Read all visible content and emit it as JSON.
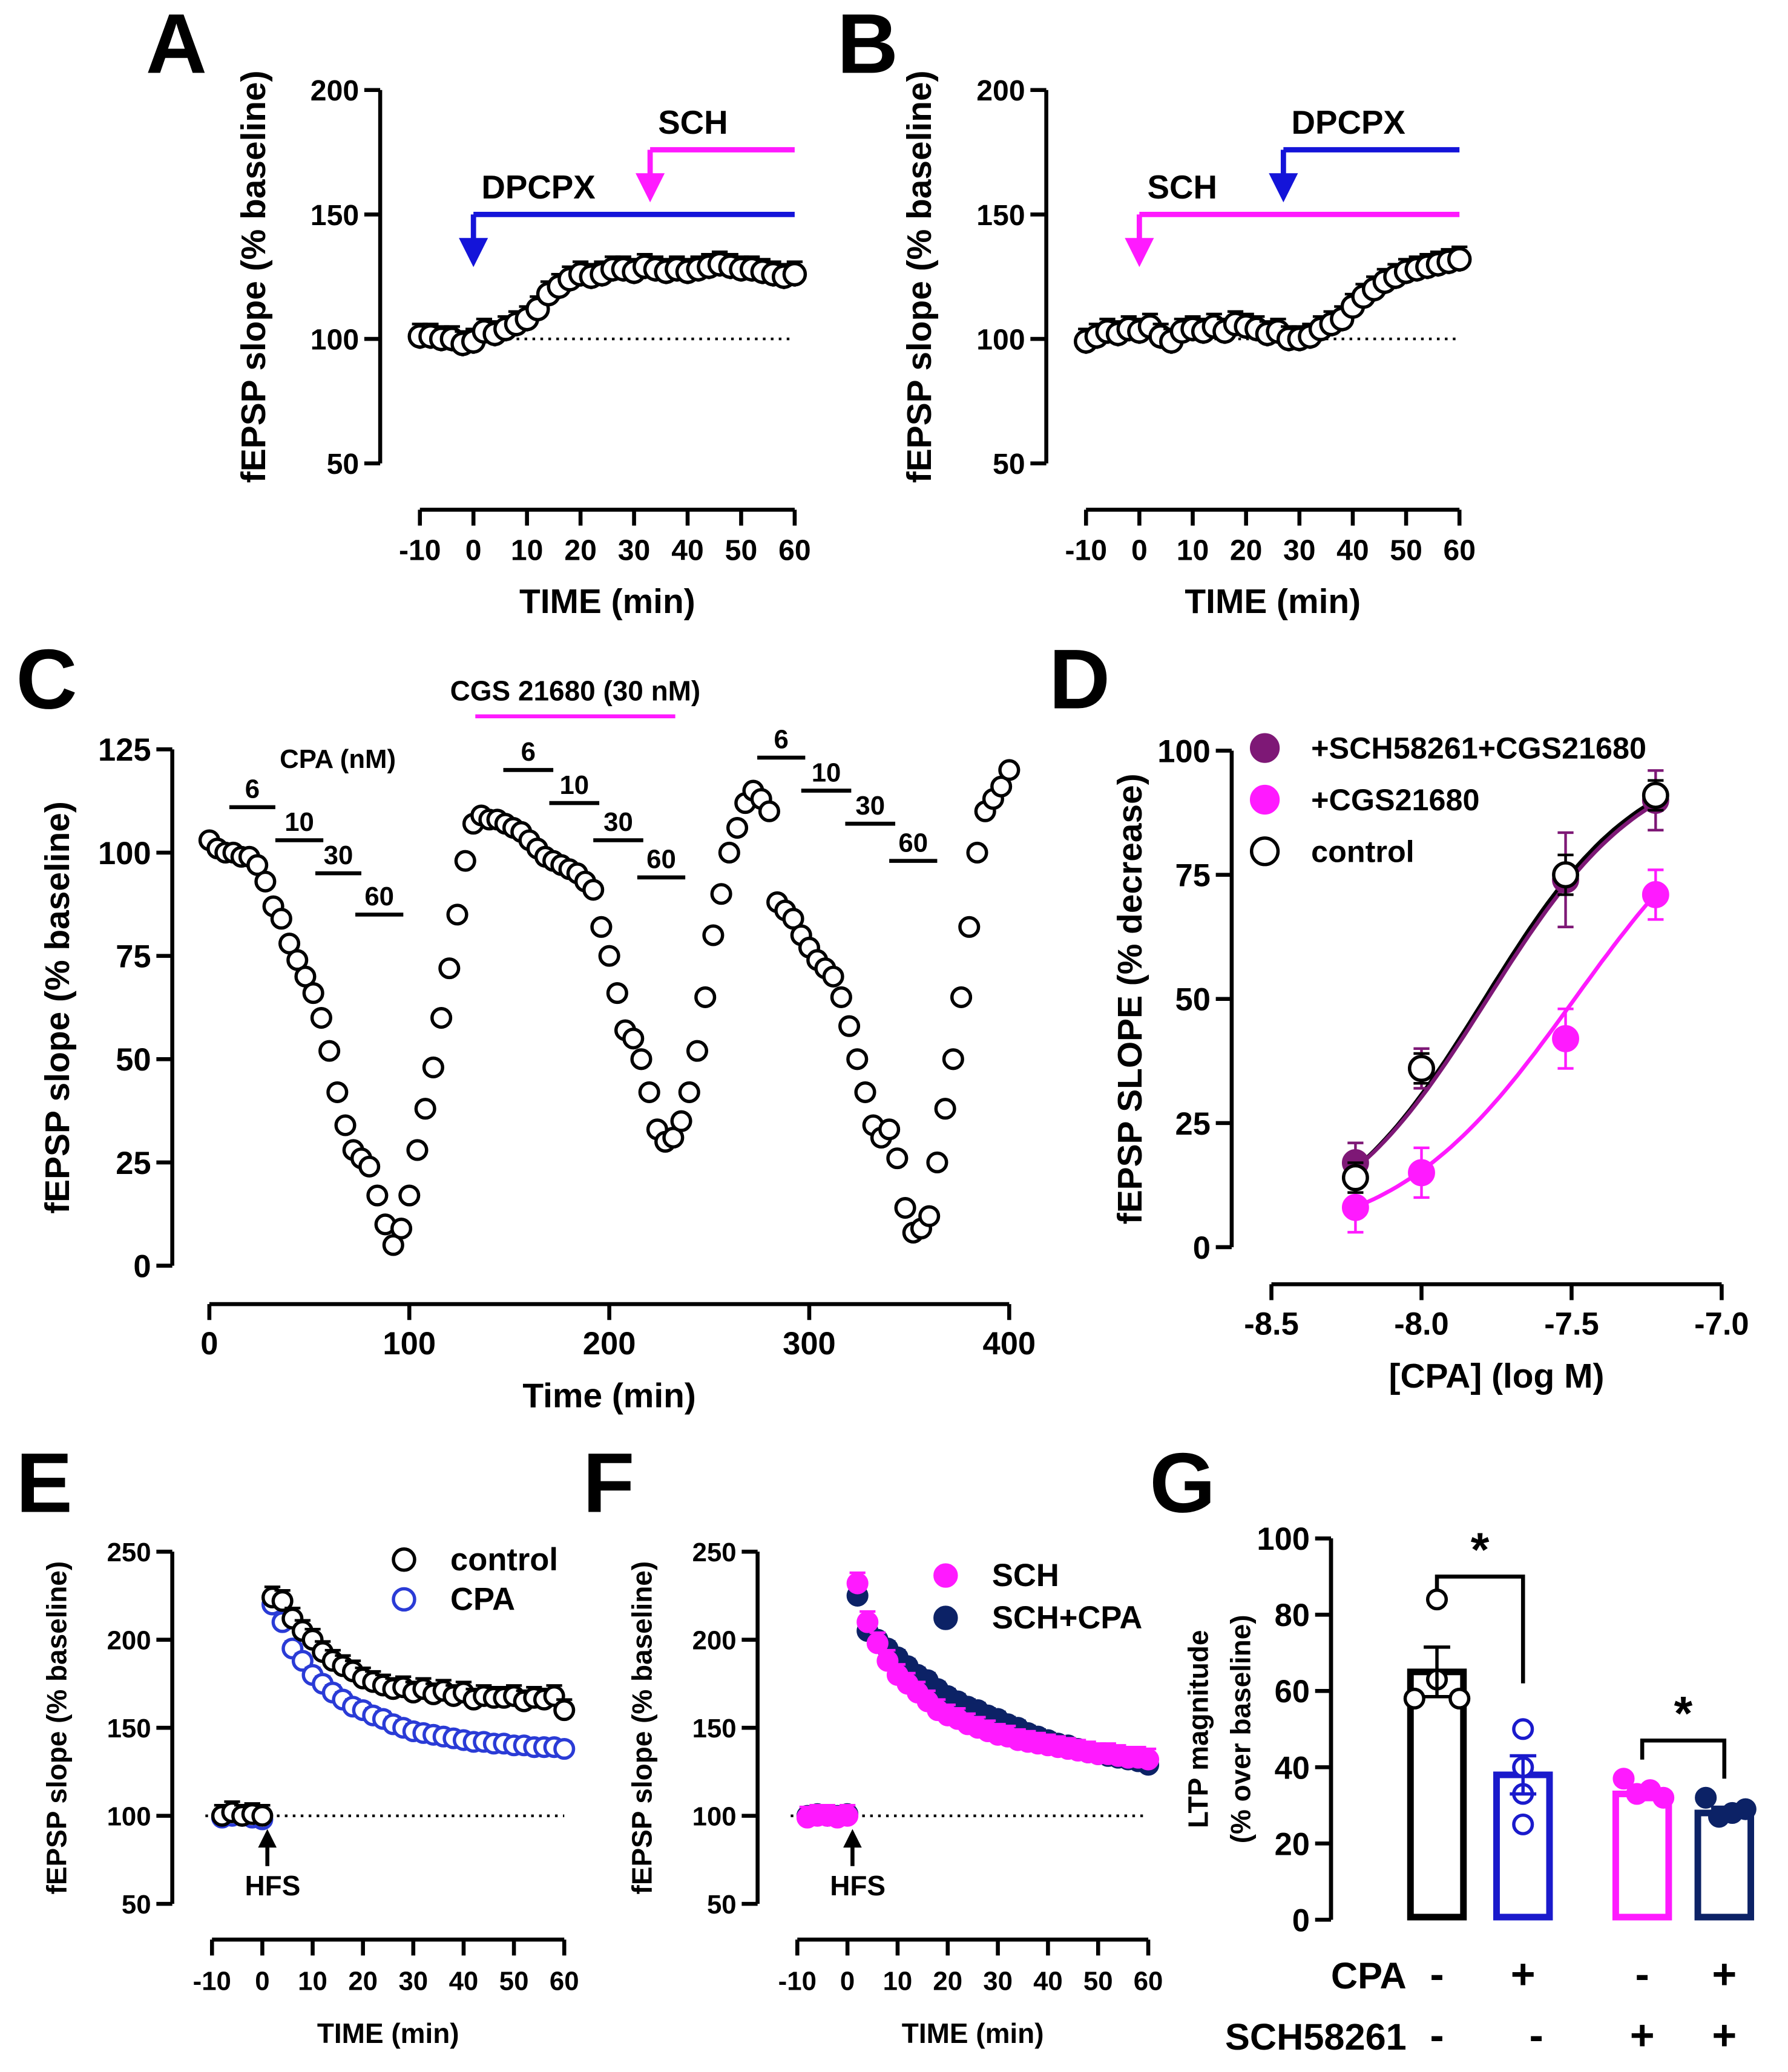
{
  "chart_data": [
    {
      "id": "A",
      "type": "scatter",
      "panel_label": "A",
      "xlabel": "TIME (min)",
      "ylabel": [
        "fEPSP slope (% baseline)"
      ],
      "xlim": [
        -10,
        60
      ],
      "ylim": [
        50,
        200
      ],
      "xticks": [
        "-10",
        "0",
        "10",
        "20",
        "30",
        "40",
        "50",
        "60"
      ],
      "yticks": [
        "50",
        "100",
        "150",
        "200"
      ],
      "baseline": 100,
      "series": [
        {
          "name": "fEPSP",
          "marker": "open",
          "color": "#000000",
          "x_start": -10,
          "x_step": 2,
          "err": 5,
          "y": [
            101,
            101,
            100,
            100,
            98,
            99,
            103,
            102,
            104,
            106,
            108,
            112,
            118,
            121,
            124,
            126,
            125,
            126,
            128,
            128,
            127,
            129,
            128,
            127,
            128,
            127,
            128,
            129,
            130,
            129,
            128,
            128,
            127,
            126,
            125,
            126
          ]
        }
      ],
      "drug_arrows": [
        {
          "label": "DPCPX",
          "x": 0,
          "level": 150,
          "tip": 131,
          "color": "#1414d9"
        },
        {
          "label": "SCH",
          "x": 33,
          "level": 176,
          "tip": 157,
          "color": "#ff1aff"
        }
      ]
    },
    {
      "id": "B",
      "type": "scatter",
      "panel_label": "B",
      "xlabel": "TIME (min)",
      "ylabel": [
        "fEPSP slope (% baseline)"
      ],
      "xlim": [
        -10,
        60
      ],
      "ylim": [
        50,
        200
      ],
      "xticks": [
        "-10",
        "0",
        "10",
        "20",
        "30",
        "40",
        "50",
        "60"
      ],
      "yticks": [
        "50",
        "100",
        "150",
        "200"
      ],
      "baseline": 100,
      "series": [
        {
          "name": "fEPSP",
          "marker": "open",
          "color": "#000000",
          "x_start": -10,
          "x_step": 2,
          "err": 5,
          "y": [
            99,
            101,
            103,
            102,
            104,
            103,
            105,
            101,
            99,
            103,
            104,
            103,
            105,
            103,
            106,
            105,
            104,
            102,
            103,
            100,
            100,
            101,
            104,
            106,
            108,
            113,
            117,
            120,
            123,
            125,
            127,
            128,
            129,
            130,
            131,
            132
          ]
        }
      ],
      "drug_arrows": [
        {
          "label": "SCH",
          "x": 0,
          "level": 150,
          "tip": 131,
          "color": "#ff1aff"
        },
        {
          "label": "DPCPX",
          "x": 27,
          "level": 176,
          "tip": 157,
          "color": "#1414d9"
        }
      ]
    },
    {
      "id": "C",
      "type": "scatter",
      "panel_label": "C",
      "xlabel": "Time (min)",
      "ylabel": [
        "fEPSP slope (% baseline)"
      ],
      "xlim": [
        0,
        400
      ],
      "ylim": [
        0,
        125
      ],
      "xticks": [
        "0",
        "100",
        "200",
        "300",
        "400"
      ],
      "yticks": [
        "0",
        "25",
        "50",
        "75",
        "100",
        "125"
      ],
      "series": [
        {
          "name": "fEPSP",
          "marker": "open",
          "color": "#000000",
          "x_start": 0,
          "x_step": 4,
          "y": [
            103,
            101,
            100,
            100,
            99,
            99,
            97,
            93,
            87,
            84,
            78,
            74,
            70,
            66,
            60,
            52,
            42,
            34,
            28,
            26,
            24,
            17,
            10,
            5,
            9,
            17,
            28,
            38,
            48,
            60,
            72,
            85,
            98,
            107,
            109,
            108,
            108,
            107,
            106,
            105,
            103,
            101,
            99,
            98,
            97,
            96,
            95,
            93,
            91,
            82,
            75,
            66,
            57,
            55,
            50,
            42,
            33,
            30,
            31,
            35,
            42,
            52,
            65,
            80,
            90,
            100,
            106,
            112,
            115,
            113,
            110,
            88,
            86,
            84,
            80,
            77,
            74,
            72,
            70,
            65,
            58,
            50,
            42,
            34,
            31,
            33,
            26,
            14,
            8,
            9,
            12,
            25,
            38,
            50,
            65,
            82,
            100,
            110,
            113,
            116,
            120
          ]
        }
      ],
      "cpa_label": "CPA (nM)",
      "cpa_color": "#1414c8",
      "cpa_bars": [
        {
          "label": "6",
          "x": [
            10,
            33
          ],
          "level": 111
        },
        {
          "label": "10",
          "x": [
            33,
            57
          ],
          "level": 103
        },
        {
          "label": "30",
          "x": [
            53,
            76
          ],
          "level": 95
        },
        {
          "label": "60",
          "x": [
            73,
            97
          ],
          "level": 85
        },
        {
          "label": "6",
          "x": [
            147,
            172
          ],
          "level": 120
        },
        {
          "label": "10",
          "x": [
            170,
            195
          ],
          "level": 112
        },
        {
          "label": "30",
          "x": [
            192,
            217
          ],
          "level": 103
        },
        {
          "label": "60",
          "x": [
            214,
            238
          ],
          "level": 94
        },
        {
          "label": "6",
          "x": [
            274,
            298
          ],
          "level": 123
        },
        {
          "label": "10",
          "x": [
            296,
            321
          ],
          "level": 115
        },
        {
          "label": "30",
          "x": [
            318,
            343
          ],
          "level": 107
        },
        {
          "label": "60",
          "x": [
            340,
            364
          ],
          "level": 98
        }
      ],
      "cgs_bar": {
        "label": "CGS 21680 (30 nM)",
        "x": [
          133,
          233
        ],
        "level": 133,
        "color": "#ff1aff"
      }
    },
    {
      "id": "D",
      "type": "scatter",
      "panel_label": "D",
      "xlabel": "[CPA] (log M)",
      "ylabel": [
        "fEPSP SLOPE  (% decrease)"
      ],
      "xlim": [
        -8.5,
        -7.0
      ],
      "ylim": [
        0,
        100
      ],
      "xticks": [
        "-8.5",
        "-8.0",
        "-7.5",
        "-7.0"
      ],
      "yticks": [
        "0",
        "25",
        "50",
        "75",
        "100"
      ],
      "legend_position": "top-left",
      "series": [
        {
          "name": "control",
          "marker": "open",
          "color": "#000000",
          "x": [
            -8.22,
            -8.0,
            -7.52,
            -7.22
          ],
          "y": [
            14,
            36,
            75,
            91
          ],
          "err": [
            3,
            3,
            4,
            3
          ],
          "fit": {
            "logEC50": -7.79,
            "hill": 1.68
          }
        },
        {
          "name": "+SCH58261+CGS21680",
          "marker": "filled",
          "color": "#7e1876",
          "x": [
            -8.22,
            -8.0,
            -7.52,
            -7.22
          ],
          "y": [
            17,
            36,
            74,
            90
          ],
          "err": [
            4,
            4,
            9.5,
            6
          ],
          "fit": {
            "logEC50": -7.78,
            "hill": 1.65
          }
        },
        {
          "name": "+CGS21680",
          "marker": "filled",
          "color": "#ff1aff",
          "x": [
            -8.22,
            -8.0,
            -7.52,
            -7.22
          ],
          "y": [
            8,
            15,
            42,
            71
          ],
          "err": [
            5,
            5,
            6,
            5
          ],
          "fit": {
            "logEC50": -7.49,
            "hill": 1.45
          }
        }
      ],
      "legend_order": [
        1,
        2,
        0
      ]
    },
    {
      "id": "E",
      "type": "scatter",
      "panel_label": "E",
      "xlabel": "TIME (min)",
      "ylabel": [
        "fEPSP slope (% baseline)"
      ],
      "xlim": [
        -10,
        60
      ],
      "ylim": [
        50,
        250
      ],
      "xticks": [
        "-10",
        "0",
        "10",
        "20",
        "30",
        "40",
        "50",
        "60"
      ],
      "yticks": [
        "50",
        "100",
        "150",
        "200",
        "250"
      ],
      "baseline": 100,
      "hfs_label": "HFS",
      "hfs_x": 1,
      "legend_position": "top-right",
      "series": [
        {
          "name": "control",
          "marker": "open",
          "color": "#000000",
          "x_start": -8,
          "x_step": 2,
          "err": 6,
          "y": [
            100,
            102,
            100,
            101,
            100,
            224,
            222,
            212,
            205,
            200,
            193,
            188,
            185,
            182,
            178,
            176,
            174,
            172,
            173,
            170,
            172,
            169,
            171,
            168,
            170,
            166,
            168,
            167,
            167,
            168,
            165,
            167,
            166,
            168,
            160
          ]
        },
        {
          "name": "CPA",
          "marker": "open",
          "color": "#2a3bd6",
          "x_start": -8,
          "x_step": 2,
          "err": 4,
          "y": [
            99,
            100,
            100,
            99,
            98,
            220,
            210,
            195,
            188,
            180,
            175,
            170,
            166,
            162,
            160,
            157,
            155,
            152,
            150,
            148,
            147,
            146,
            145,
            144,
            143,
            142,
            142,
            141,
            141,
            140,
            140,
            139,
            139,
            139,
            138
          ]
        }
      ]
    },
    {
      "id": "F",
      "type": "scatter",
      "panel_label": "F",
      "xlabel": "TIME (min)",
      "ylabel": [
        "fEPSP slope (% baseline)"
      ],
      "xlim": [
        -10,
        60
      ],
      "ylim": [
        50,
        250
      ],
      "xticks": [
        "-10",
        "0",
        "10",
        "20",
        "30",
        "40",
        "50",
        "60"
      ],
      "yticks": [
        "50",
        "100",
        "150",
        "200",
        "250"
      ],
      "baseline": 100,
      "hfs_label": "HFS",
      "hfs_x": 1,
      "legend_position": "top-right",
      "series": [
        {
          "name": "SCH",
          "marker": "filled",
          "color": "#ff1aff",
          "x_start": -8,
          "x_step": 2,
          "err": 6,
          "y": [
            99,
            100,
            100,
            99,
            100,
            232,
            210,
            198,
            188,
            180,
            175,
            170,
            165,
            160,
            157,
            155,
            152,
            150,
            148,
            146,
            145,
            143,
            142,
            141,
            140,
            139,
            138,
            137,
            136,
            135,
            135,
            134,
            133,
            133,
            132
          ]
        },
        {
          "name": "SCH+CPA",
          "marker": "filled",
          "color": "#0c2266",
          "x_start": -8,
          "x_step": 2,
          "err": 4,
          "y": [
            100,
            101,
            100,
            100,
            101,
            225,
            205,
            200,
            195,
            190,
            185,
            180,
            177,
            172,
            168,
            165,
            162,
            160,
            157,
            155,
            152,
            150,
            147,
            145,
            143,
            141,
            140,
            138,
            136,
            135,
            134,
            133,
            132,
            131,
            129
          ]
        }
      ]
    },
    {
      "id": "G",
      "type": "bar",
      "panel_label": "G",
      "ylabel": [
        "LTP magnitude",
        "(% over baseline)"
      ],
      "ylim": [
        0,
        100
      ],
      "yticks": [
        "0",
        "20",
        "40",
        "60",
        "80",
        "100"
      ],
      "bars": [
        {
          "value": 65,
          "err": 6.5,
          "color": "#000000",
          "filled_points": false,
          "points": [
            84,
            63,
            58,
            58
          ]
        },
        {
          "value": 38,
          "err": 5,
          "color": "#1a1acc",
          "filled_points": false,
          "points": [
            50,
            40,
            33,
            25
          ]
        },
        {
          "value": 33,
          "err": 1.5,
          "color": "#ff1aff",
          "filled_points": true,
          "points": [
            37,
            33,
            34,
            32
          ]
        },
        {
          "value": 28,
          "err": 1.5,
          "color": "#0c2266",
          "filled_points": true,
          "points": [
            32,
            27,
            28,
            29
          ]
        }
      ],
      "significance": [
        {
          "groups": [
            0,
            1
          ],
          "label": "*",
          "level": 90,
          "legs": [
            86,
            62
          ]
        },
        {
          "groups": [
            2,
            3
          ],
          "label": "*",
          "level": 47,
          "legs": [
            42,
            37
          ]
        }
      ],
      "conditions": [
        {
          "label": "CPA",
          "color": "#1414c8",
          "values": [
            "-",
            "+",
            "-",
            "+"
          ]
        },
        {
          "label": "SCH58261",
          "color": "#ff1aff",
          "values": [
            "-",
            "-",
            "+",
            "+"
          ]
        }
      ]
    }
  ]
}
